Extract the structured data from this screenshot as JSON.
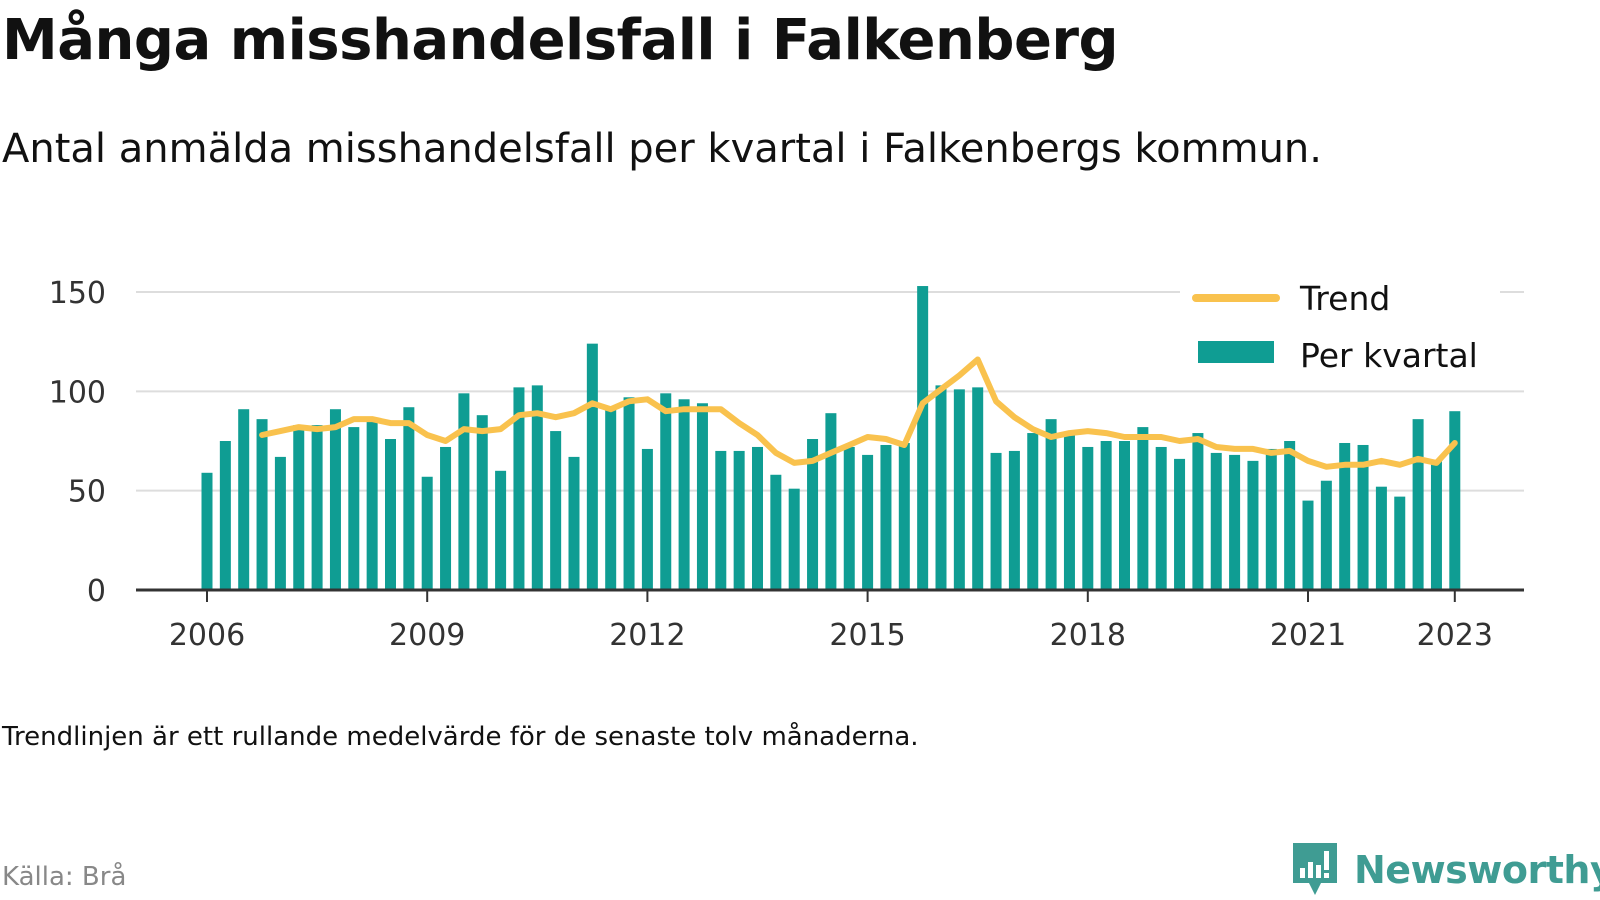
{
  "header": {
    "title": "Många misshandelsfall i Falkenberg",
    "subtitle": "Antal anmälda misshandelsfall per kvartal i Falkenbergs kommun."
  },
  "footer": {
    "note": "Trendlinjen är ett rullande medelvärde för de senaste tolv månaderna.",
    "source": "Källa: Brå",
    "brand": "Newsworthy",
    "brand_icon": "bar-chart-speech-bubble-icon"
  },
  "colors": {
    "bar": "#0f9d93",
    "trend": "#f9c24e",
    "grid": "#dddddd",
    "axis": "#333333",
    "brand": "#3f9c93"
  },
  "chart_data": {
    "type": "bar",
    "title": "Många misshandelsfall i Falkenberg",
    "subtitle": "Antal anmälda misshandelsfall per kvartal i Falkenbergs kommun.",
    "xlabel": "",
    "ylabel": "",
    "ylim": [
      0,
      150
    ],
    "yticks": [
      0,
      50,
      100,
      150
    ],
    "xticks": [
      {
        "label": "2006",
        "year": 2006
      },
      {
        "label": "2009",
        "year": 2009
      },
      {
        "label": "2012",
        "year": 2012
      },
      {
        "label": "2015",
        "year": 2015
      },
      {
        "label": "2018",
        "year": 2018
      },
      {
        "label": "2021",
        "year": 2021
      },
      {
        "label": "2023",
        "year": 2023
      }
    ],
    "grid": true,
    "legend": {
      "position": "top-right",
      "entries": [
        "Trend",
        "Per kvartal"
      ]
    },
    "start_year": 2006,
    "series": [
      {
        "name": "Per kvartal",
        "type": "bar",
        "values": [
          59,
          75,
          91,
          86,
          67,
          83,
          83,
          91,
          82,
          86,
          76,
          92,
          57,
          72,
          99,
          88,
          60,
          102,
          103,
          80,
          67,
          124,
          91,
          97,
          71,
          99,
          96,
          94,
          70,
          70,
          72,
          58,
          51,
          76,
          89,
          72,
          68,
          73,
          74,
          153,
          103,
          101,
          102,
          69,
          70,
          79,
          86,
          79,
          72,
          75,
          75,
          82,
          72,
          66,
          79,
          69,
          68,
          65,
          71,
          75,
          45,
          55,
          74,
          73,
          52,
          47,
          86,
          65,
          90
        ]
      },
      {
        "name": "Trend",
        "type": "line",
        "values": [
          null,
          null,
          null,
          78,
          80,
          82,
          81,
          82,
          86,
          86,
          84,
          84,
          78,
          75,
          81,
          80,
          81,
          88,
          89,
          87,
          89,
          94,
          91,
          95,
          96,
          90,
          91,
          91,
          91,
          84,
          78,
          69,
          64,
          65,
          69,
          73,
          77,
          76,
          73,
          94,
          101,
          108,
          116,
          95,
          87,
          81,
          77,
          79,
          80,
          79,
          77,
          77,
          77,
          75,
          76,
          72,
          71,
          71,
          69,
          70,
          65,
          62,
          63,
          63,
          65,
          63,
          66,
          64,
          74
        ]
      }
    ]
  }
}
